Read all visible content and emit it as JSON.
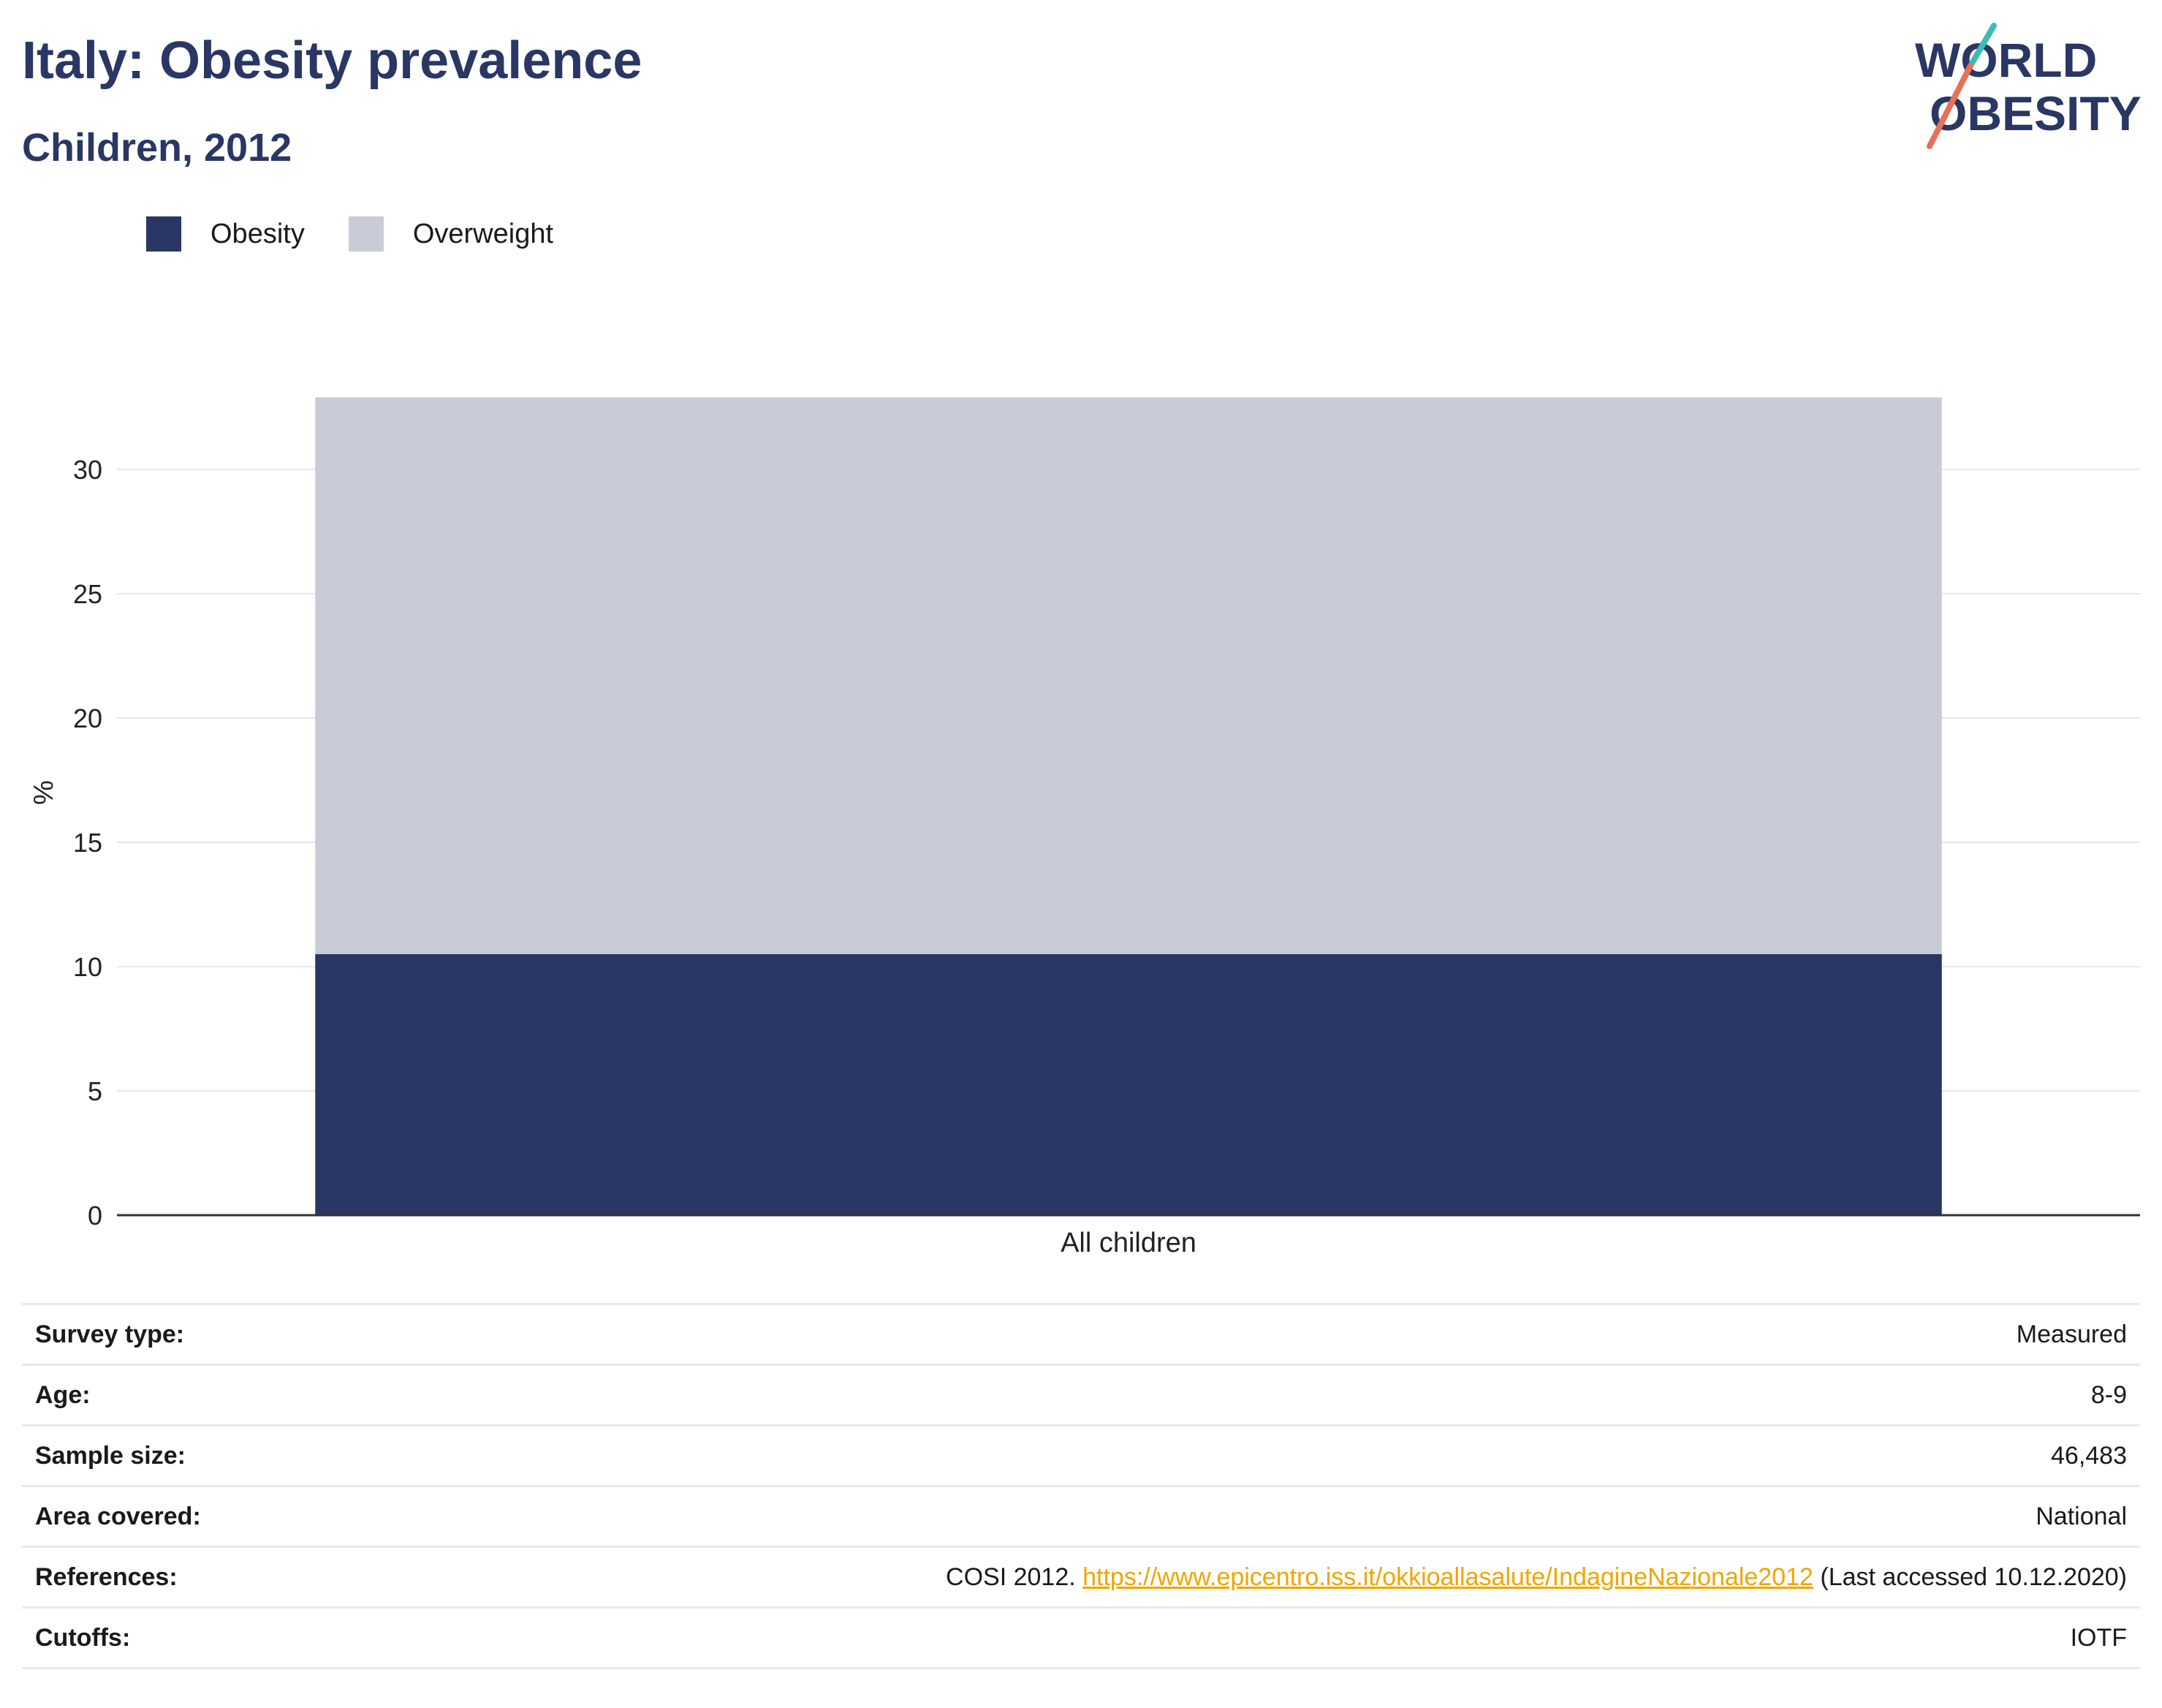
{
  "header": {
    "title": "Italy: Obesity prevalence",
    "subtitle": "Children, 2012"
  },
  "logo": {
    "line1": "WORLD",
    "line2": "OBESITY",
    "accent_teal": "#3cbcb4",
    "accent_coral": "#e8705a"
  },
  "legend": [
    {
      "label": "Obesity",
      "color": "#2a3663"
    },
    {
      "label": "Overweight",
      "color": "#c9ccd8"
    }
  ],
  "chart_data": {
    "type": "bar",
    "stacked": true,
    "categories": [
      "All children"
    ],
    "series": [
      {
        "name": "Obesity",
        "values": [
          10.5
        ],
        "color": "#2a3663"
      },
      {
        "name": "Overweight",
        "values": [
          22.4
        ],
        "color": "#c9ccd8"
      }
    ],
    "ylabel": "%",
    "ylim": [
      0,
      33
    ],
    "yticks": [
      0,
      5,
      10,
      15,
      20,
      25,
      30
    ],
    "grid": true,
    "legend_position": "top-left"
  },
  "info": {
    "rows": [
      {
        "label": "Survey type:",
        "value": "Measured"
      },
      {
        "label": "Age:",
        "value": "8-9"
      },
      {
        "label": "Sample size:",
        "value": "46,483"
      },
      {
        "label": "Area covered:",
        "value": "National"
      },
      {
        "label": "References:",
        "value_prefix": "COSI 2012. ",
        "link": "https://www.epicentro.iss.it/okkioallasalute/IndagineNazionale2012",
        "value_suffix": " (Last accessed 10.12.2020)"
      },
      {
        "label": "Cutoffs:",
        "value": "IOTF"
      }
    ]
  }
}
